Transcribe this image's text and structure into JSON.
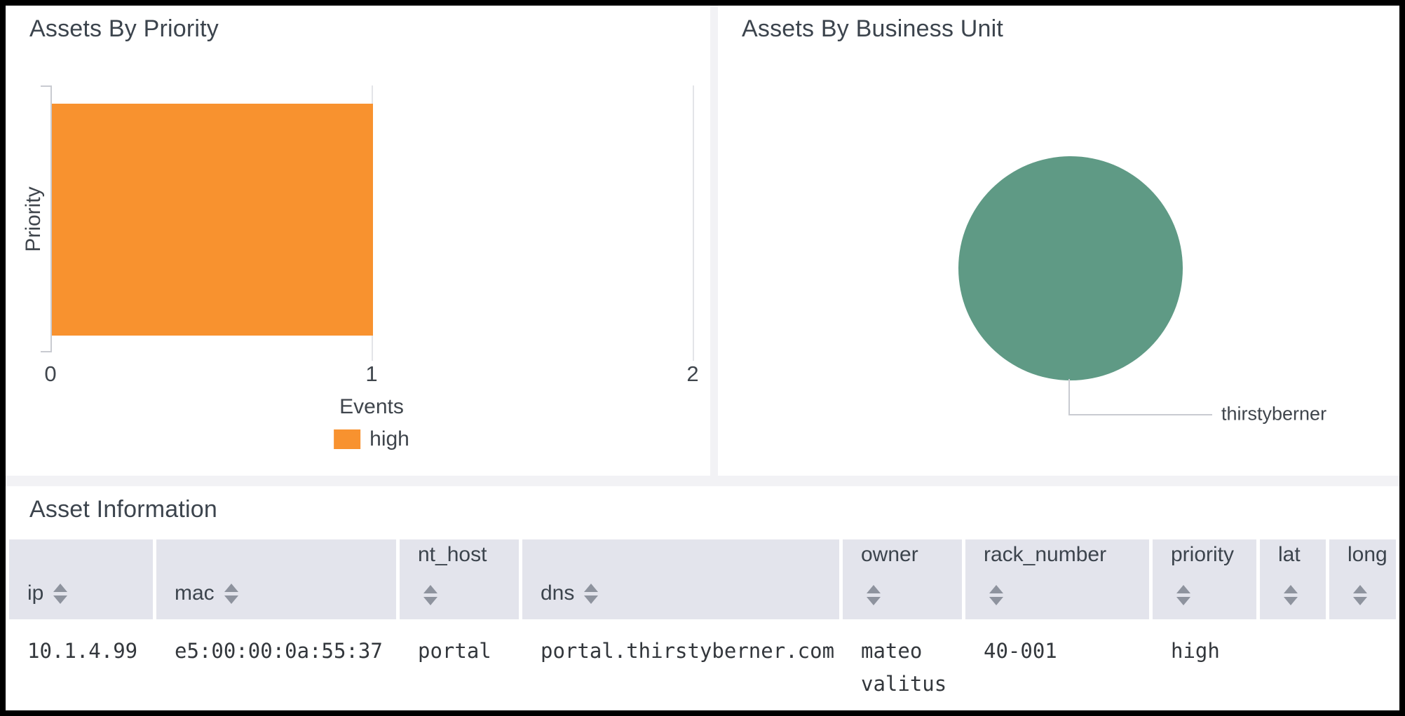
{
  "panels": {
    "assets_by_priority": {
      "title": "Assets By Priority"
    },
    "assets_by_business_unit": {
      "title": "Assets By Business Unit"
    },
    "asset_information": {
      "title": "Asset Information"
    }
  },
  "chart_data": [
    {
      "type": "bar",
      "orientation": "horizontal",
      "title": "Assets By Priority",
      "categories": [
        "high"
      ],
      "series": [
        {
          "name": "Events",
          "values": [
            1
          ]
        }
      ],
      "xlabel": "Events",
      "ylabel": "Priority",
      "xlim": [
        0,
        2
      ],
      "xticks": [
        "0",
        "1",
        "2"
      ],
      "grid": "vertical-gridlines-on",
      "legend": [
        {
          "label": "high",
          "color": "#f8922f"
        }
      ],
      "legend_position": "bottom"
    },
    {
      "type": "pie",
      "title": "Assets By Business Unit",
      "labels": [
        "thirstyberner"
      ],
      "values": [
        1
      ],
      "colors": [
        "#5f9a85"
      ],
      "legend_position": "callout-right"
    }
  ],
  "table": {
    "title": "Asset Information",
    "columns": [
      {
        "label": "ip"
      },
      {
        "label": "mac"
      },
      {
        "label": "nt_host"
      },
      {
        "label": "dns"
      },
      {
        "label": "owner"
      },
      {
        "label": "rack_number"
      },
      {
        "label": "priority"
      },
      {
        "label": "lat"
      },
      {
        "label": "long"
      }
    ],
    "rows": [
      [
        "10.1.4.99",
        "e5:00:00:0a:55:37",
        "portal",
        "portal.thirstyberner.com",
        "mateo valitus",
        "40-001",
        "high",
        "",
        ""
      ]
    ]
  },
  "colors": {
    "bar_orange": "#f8922f",
    "pie_green": "#5f9a85",
    "page_background": "#f2f2f5",
    "panel_background": "#ffffff",
    "header_background": "#e3e4ec",
    "title_text": "#3c444d",
    "axis_line": "#c9cbd1"
  }
}
